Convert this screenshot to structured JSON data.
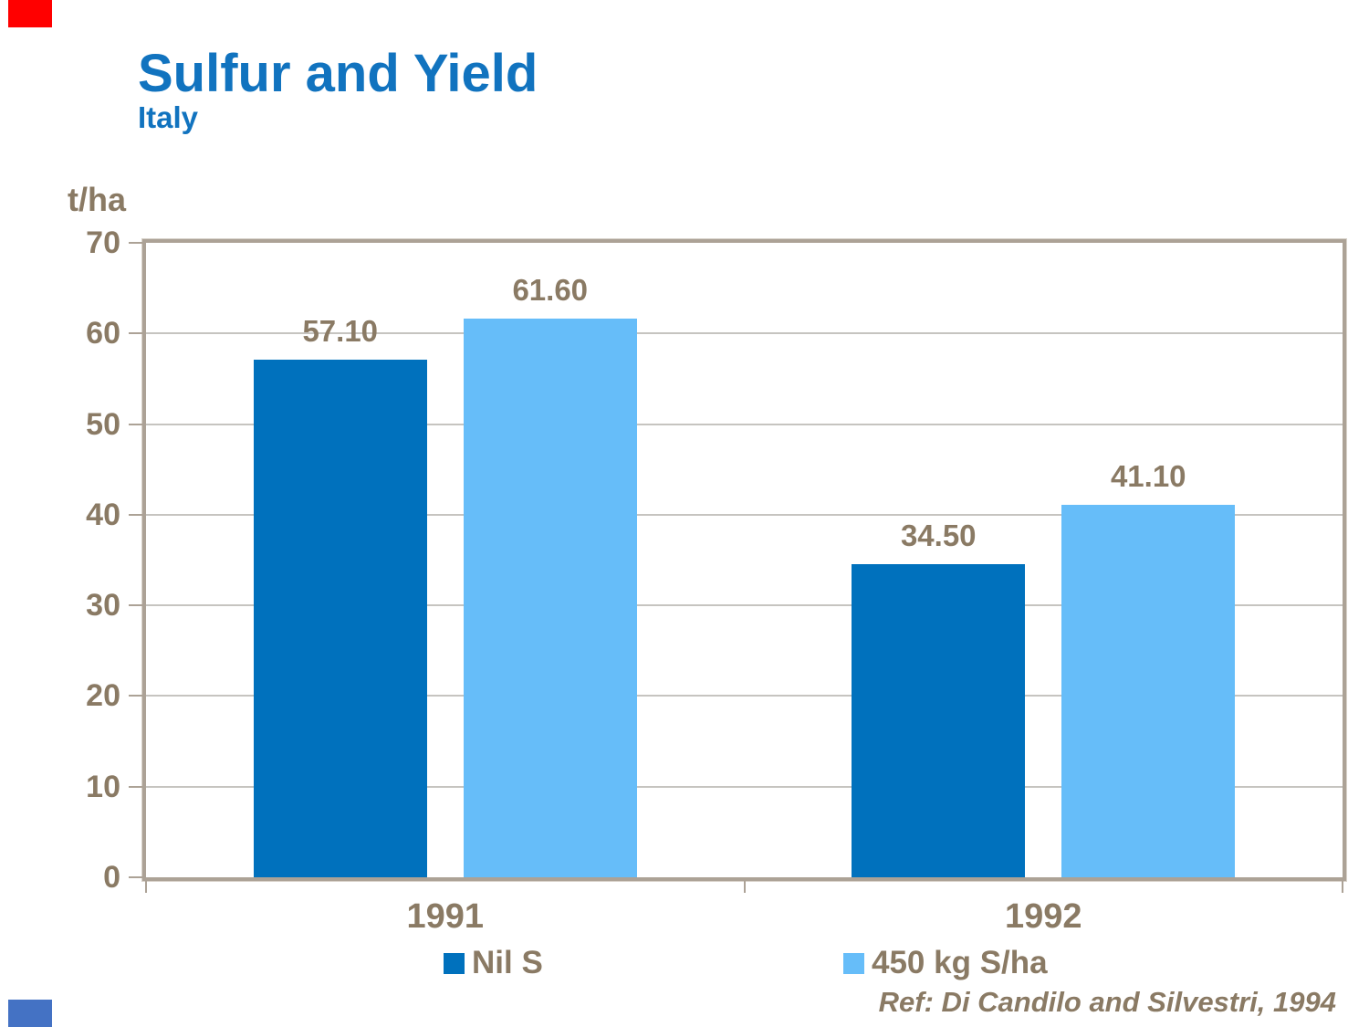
{
  "slide": {
    "accents": {
      "top_left_color": "#FF0000",
      "bottom_left_color": "#4472C4"
    }
  },
  "chart_data": {
    "type": "bar",
    "title": "Sulfur and Yield",
    "subtitle": "Italy",
    "ylabel": "t/ha",
    "xlabel": "",
    "ylim": [
      0,
      70
    ],
    "yticks": [
      0,
      10,
      20,
      30,
      40,
      50,
      60,
      70
    ],
    "grid": "horizontal",
    "legend_position": "bottom",
    "categories": [
      "1991",
      "1992"
    ],
    "series": [
      {
        "name": "Nil S",
        "color": "#0071BD",
        "values": [
          57.1,
          34.5
        ],
        "labels": [
          "57.10",
          "34.50"
        ]
      },
      {
        "name": "450 kg S/ha",
        "color": "#66BDF9",
        "values": [
          61.6,
          41.1
        ],
        "labels": [
          "61.60",
          "41.10"
        ]
      }
    ],
    "reference": "Ref: Di Candilo and Silvestri, 1994",
    "style": {
      "title_color": "#1173BF",
      "text_color": "#8A7A64",
      "axis_color": "#ACA296",
      "grid_color": "#C6C4C0"
    }
  }
}
